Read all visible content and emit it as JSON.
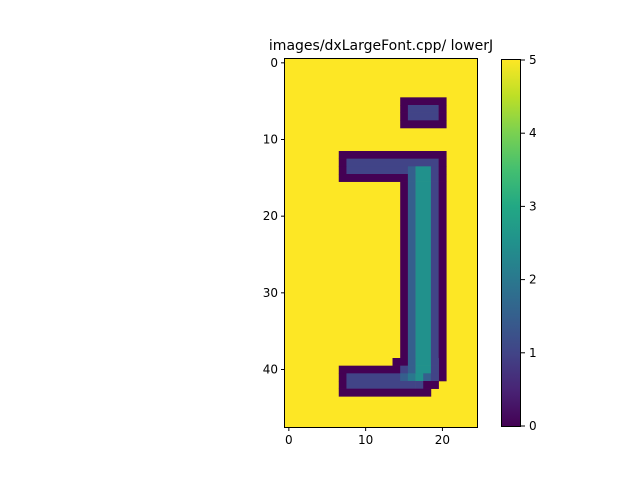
{
  "chart_data": {
    "type": "heatmap",
    "title": "images/dxLargeFont.cpp/ lowerJ",
    "xlabel": "",
    "ylabel": "",
    "grid": false,
    "colormap": "viridis",
    "vmin": 0,
    "vmax": 5,
    "x_range": [
      -0.5,
      24.5
    ],
    "y_range": [
      47.5,
      -0.5
    ],
    "x_ticks": [
      0,
      10,
      20
    ],
    "y_ticks": [
      0,
      10,
      20,
      30,
      40
    ],
    "colorbar_ticks": [
      0,
      1,
      2,
      3,
      4,
      5
    ],
    "background_value": 5,
    "cells": [
      {
        "row": 5,
        "col_start": 15,
        "col_end": 20,
        "value": 0
      },
      {
        "row": 6,
        "col_start": 15,
        "col_end": 15,
        "value": 0
      },
      {
        "row": 6,
        "col_start": 16,
        "col_end": 19,
        "value": 1
      },
      {
        "row": 6,
        "col_start": 20,
        "col_end": 20,
        "value": 0
      },
      {
        "row": 7,
        "col_start": 15,
        "col_end": 15,
        "value": 0
      },
      {
        "row": 7,
        "col_start": 16,
        "col_end": 19,
        "value": 1
      },
      {
        "row": 7,
        "col_start": 20,
        "col_end": 20,
        "value": 0
      },
      {
        "row": 8,
        "col_start": 15,
        "col_end": 20,
        "value": 0
      },
      {
        "row": 12,
        "col_start": 7,
        "col_end": 20,
        "value": 0
      },
      {
        "row": 13,
        "col_start": 7,
        "col_end": 7,
        "value": 0
      },
      {
        "row": 13,
        "col_start": 8,
        "col_end": 19,
        "value": 1
      },
      {
        "row": 13,
        "col_start": 20,
        "col_end": 20,
        "value": 0
      },
      {
        "row": 14,
        "col_start": 7,
        "col_end": 7,
        "value": 0
      },
      {
        "row": 14,
        "col_start": 8,
        "col_end": 15,
        "value": 1
      },
      {
        "row": 14,
        "col_start": 16,
        "col_end": 16,
        "value": 1.5
      },
      {
        "row": 14,
        "col_start": 17,
        "col_end": 18,
        "value": 2.5
      },
      {
        "row": 14,
        "col_start": 19,
        "col_end": 19,
        "value": 1
      },
      {
        "row": 14,
        "col_start": 20,
        "col_end": 20,
        "value": 0
      },
      {
        "row": 15,
        "col_start": 7,
        "col_end": 15,
        "value": 0
      },
      {
        "row": 15,
        "col_start": 16,
        "col_end": 16,
        "value": 1.5
      },
      {
        "row": 15,
        "col_start": 17,
        "col_end": 18,
        "value": 2.5
      },
      {
        "row": 15,
        "col_start": 19,
        "col_end": 19,
        "value": 1
      },
      {
        "row": 15,
        "col_start": 20,
        "col_end": 20,
        "value": 0
      },
      {
        "row_start": 16,
        "row_end": 38,
        "col_start": 15,
        "col_end": 15,
        "value": 0
      },
      {
        "row_start": 16,
        "row_end": 38,
        "col_start": 16,
        "col_end": 16,
        "value": 1.5
      },
      {
        "row_start": 16,
        "row_end": 38,
        "col_start": 17,
        "col_end": 18,
        "value": 2.5
      },
      {
        "row_start": 16,
        "row_end": 38,
        "col_start": 19,
        "col_end": 19,
        "value": 1
      },
      {
        "row_start": 16,
        "row_end": 41,
        "col_start": 20,
        "col_end": 20,
        "value": 0
      },
      {
        "row": 39,
        "col_start": 14,
        "col_end": 15,
        "value": 0
      },
      {
        "row": 39,
        "col_start": 16,
        "col_end": 16,
        "value": 1.5
      },
      {
        "row": 39,
        "col_start": 17,
        "col_end": 18,
        "value": 2.5
      },
      {
        "row": 39,
        "col_start": 19,
        "col_end": 19,
        "value": 1
      },
      {
        "row": 40,
        "col_start": 7,
        "col_end": 14,
        "value": 0
      },
      {
        "row": 40,
        "col_start": 15,
        "col_end": 15,
        "value": 1
      },
      {
        "row": 40,
        "col_start": 16,
        "col_end": 16,
        "value": 1.5
      },
      {
        "row": 40,
        "col_start": 17,
        "col_end": 18,
        "value": 2.5
      },
      {
        "row": 40,
        "col_start": 19,
        "col_end": 19,
        "value": 1
      },
      {
        "row": 41,
        "col_start": 7,
        "col_end": 7,
        "value": 0
      },
      {
        "row": 41,
        "col_start": 8,
        "col_end": 14,
        "value": 1
      },
      {
        "row": 41,
        "col_start": 15,
        "col_end": 15,
        "value": 1.5
      },
      {
        "row": 41,
        "col_start": 16,
        "col_end": 16,
        "value": 2
      },
      {
        "row": 41,
        "col_start": 17,
        "col_end": 17,
        "value": 2.5
      },
      {
        "row": 41,
        "col_start": 18,
        "col_end": 18,
        "value": 1.5
      },
      {
        "row": 41,
        "col_start": 19,
        "col_end": 19,
        "value": 1
      },
      {
        "row": 42,
        "col_start": 7,
        "col_end": 7,
        "value": 0
      },
      {
        "row": 42,
        "col_start": 8,
        "col_end": 16,
        "value": 1
      },
      {
        "row": 42,
        "col_start": 17,
        "col_end": 17,
        "value": 1
      },
      {
        "row": 42,
        "col_start": 18,
        "col_end": 19,
        "value": 0
      },
      {
        "row": 43,
        "col_start": 7,
        "col_end": 18,
        "value": 0
      }
    ]
  }
}
